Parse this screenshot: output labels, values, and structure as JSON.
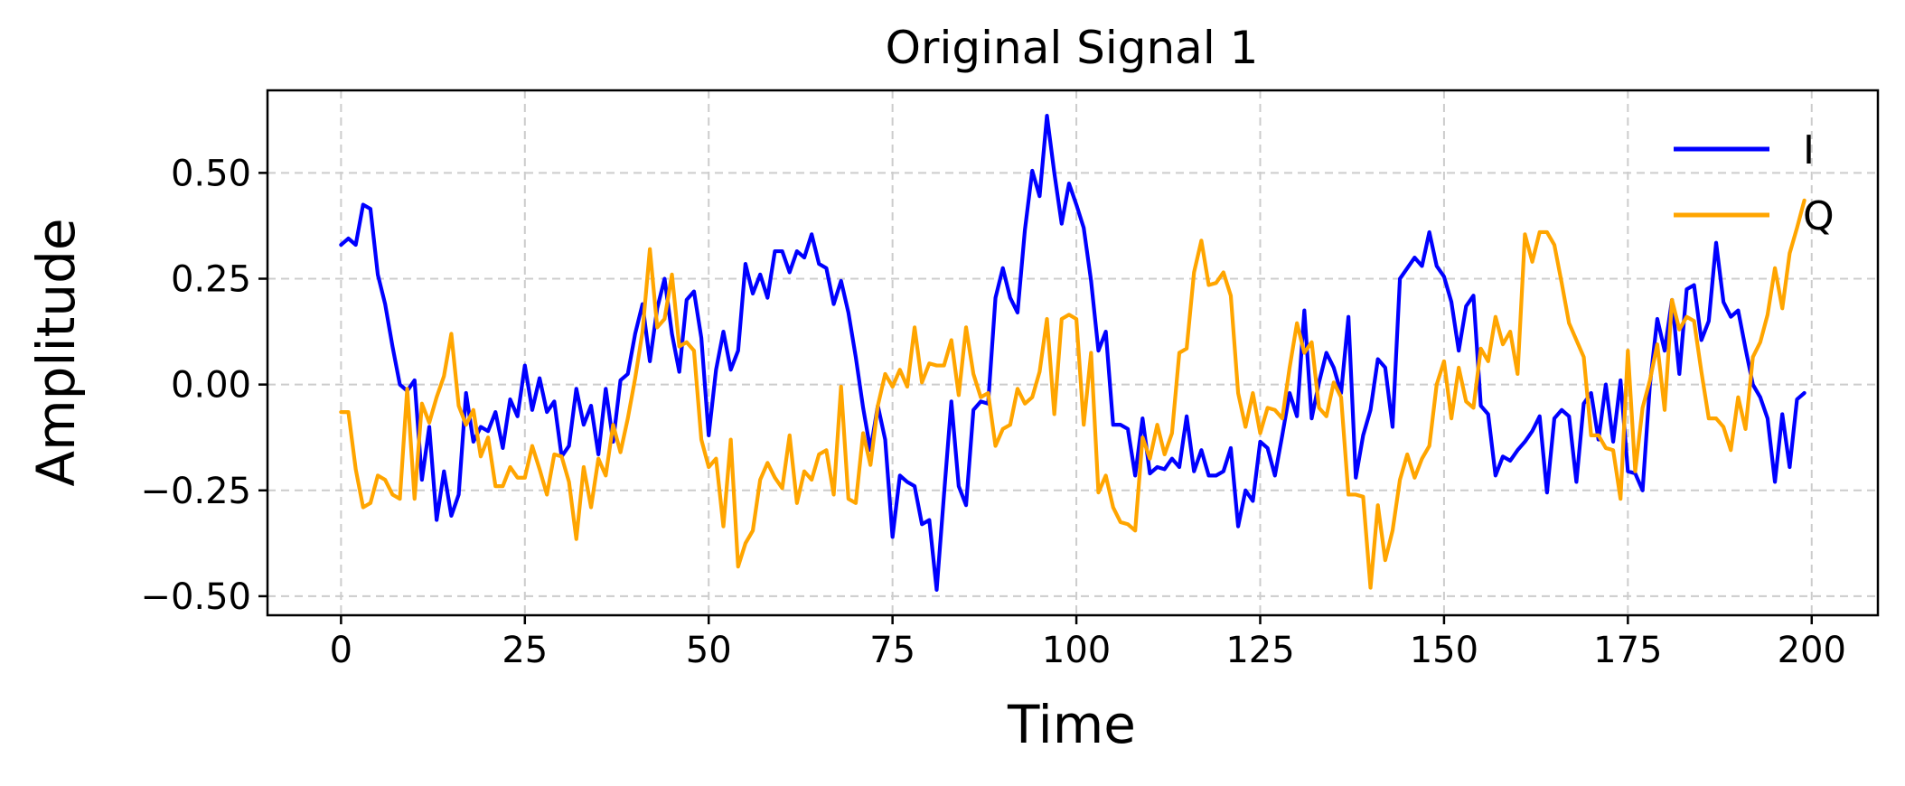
{
  "chart_data": {
    "type": "line",
    "title": "Original Signal 1",
    "xlabel": "Time",
    "ylabel": "Amplitude",
    "xlim": [
      -10,
      209
    ],
    "ylim": [
      -0.545,
      0.695
    ],
    "xticks": [
      0,
      25,
      50,
      75,
      100,
      125,
      150,
      175,
      200
    ],
    "xtick_labels": [
      "0",
      "25",
      "50",
      "75",
      "100",
      "125",
      "150",
      "175",
      "200"
    ],
    "yticks": [
      0.5,
      0.25,
      0.0,
      -0.25,
      -0.5
    ],
    "ytick_labels": [
      "0.50",
      "0.25",
      "0.00",
      "−0.25",
      "−0.50"
    ],
    "grid": true,
    "legend_position": "top-right",
    "series": [
      {
        "name": "I",
        "color": "#0000ff",
        "values": [
          0.33,
          0.345,
          0.33,
          0.425,
          0.415,
          0.26,
          0.19,
          0.09,
          0.0,
          -0.015,
          0.01,
          -0.225,
          -0.1,
          -0.32,
          -0.205,
          -0.31,
          -0.26,
          -0.02,
          -0.135,
          -0.1,
          -0.11,
          -0.065,
          -0.15,
          -0.035,
          -0.075,
          0.045,
          -0.06,
          0.015,
          -0.065,
          -0.04,
          -0.17,
          -0.145,
          -0.01,
          -0.095,
          -0.05,
          -0.165,
          -0.01,
          -0.135,
          0.01,
          0.025,
          0.12,
          0.19,
          0.055,
          0.18,
          0.25,
          0.12,
          0.03,
          0.2,
          0.22,
          0.11,
          -0.12,
          0.035,
          0.125,
          0.035,
          0.08,
          0.285,
          0.215,
          0.26,
          0.205,
          0.315,
          0.315,
          0.265,
          0.315,
          0.3,
          0.355,
          0.285,
          0.275,
          0.19,
          0.245,
          0.17,
          0.065,
          -0.055,
          -0.155,
          -0.05,
          -0.13,
          -0.36,
          -0.215,
          -0.23,
          -0.24,
          -0.33,
          -0.32,
          -0.485,
          -0.26,
          -0.04,
          -0.24,
          -0.285,
          -0.06,
          -0.04,
          -0.045,
          0.205,
          0.275,
          0.205,
          0.17,
          0.365,
          0.505,
          0.445,
          0.635,
          0.5,
          0.38,
          0.475,
          0.425,
          0.37,
          0.245,
          0.08,
          0.125,
          -0.095,
          -0.095,
          -0.105,
          -0.215,
          -0.08,
          -0.21,
          -0.195,
          -0.2,
          -0.175,
          -0.195,
          -0.075,
          -0.205,
          -0.155,
          -0.215,
          -0.215,
          -0.205,
          -0.15,
          -0.335,
          -0.25,
          -0.275,
          -0.135,
          -0.15,
          -0.215,
          -0.12,
          -0.02,
          -0.075,
          0.175,
          -0.08,
          0.005,
          0.075,
          0.04,
          -0.02,
          0.16,
          -0.22,
          -0.12,
          -0.06,
          0.06,
          0.04,
          -0.1,
          0.25,
          0.275,
          0.3,
          0.28,
          0.36,
          0.28,
          0.255,
          0.195,
          0.08,
          0.185,
          0.21,
          -0.05,
          -0.07,
          -0.215,
          -0.17,
          -0.18,
          -0.155,
          -0.135,
          -0.11,
          -0.075,
          -0.255,
          -0.08,
          -0.06,
          -0.075,
          -0.23,
          -0.045,
          -0.02,
          -0.13,
          0.0,
          -0.135,
          0.01,
          -0.205,
          -0.21,
          -0.25,
          0.0,
          0.155,
          0.08,
          0.2,
          0.025,
          0.225,
          0.235,
          0.105,
          0.15,
          0.335,
          0.195,
          0.16,
          0.175,
          0.085,
          0.0,
          -0.03,
          -0.08,
          -0.23,
          -0.07,
          -0.195,
          -0.035,
          -0.02
        ]
      },
      {
        "name": "Q",
        "color": "#ffa500",
        "values": [
          -0.065,
          -0.065,
          -0.2,
          -0.29,
          -0.28,
          -0.215,
          -0.225,
          -0.26,
          -0.27,
          -0.01,
          -0.27,
          -0.045,
          -0.09,
          -0.03,
          0.02,
          0.12,
          -0.05,
          -0.095,
          -0.06,
          -0.17,
          -0.125,
          -0.24,
          -0.24,
          -0.195,
          -0.22,
          -0.22,
          -0.145,
          -0.2,
          -0.26,
          -0.165,
          -0.17,
          -0.23,
          -0.365,
          -0.195,
          -0.29,
          -0.175,
          -0.215,
          -0.095,
          -0.16,
          -0.08,
          0.015,
          0.125,
          0.32,
          0.135,
          0.155,
          0.26,
          0.09,
          0.1,
          0.08,
          -0.13,
          -0.195,
          -0.175,
          -0.335,
          -0.13,
          -0.43,
          -0.375,
          -0.345,
          -0.225,
          -0.185,
          -0.22,
          -0.245,
          -0.12,
          -0.28,
          -0.205,
          -0.225,
          -0.165,
          -0.155,
          -0.26,
          -0.005,
          -0.27,
          -0.28,
          -0.115,
          -0.19,
          -0.05,
          0.025,
          -0.005,
          0.035,
          -0.005,
          0.135,
          0.005,
          0.05,
          0.045,
          0.045,
          0.105,
          -0.025,
          0.135,
          0.025,
          -0.03,
          -0.02,
          -0.145,
          -0.105,
          -0.095,
          -0.01,
          -0.045,
          -0.03,
          0.03,
          0.155,
          -0.07,
          0.155,
          0.165,
          0.155,
          -0.095,
          0.075,
          -0.255,
          -0.215,
          -0.29,
          -0.325,
          -0.33,
          -0.345,
          -0.125,
          -0.175,
          -0.095,
          -0.165,
          -0.115,
          0.075,
          0.085,
          0.265,
          0.34,
          0.235,
          0.24,
          0.265,
          0.21,
          -0.02,
          -0.1,
          -0.02,
          -0.115,
          -0.055,
          -0.06,
          -0.08,
          0.04,
          0.145,
          0.075,
          0.1,
          -0.055,
          -0.075,
          0.005,
          -0.03,
          -0.26,
          -0.26,
          -0.265,
          -0.48,
          -0.285,
          -0.415,
          -0.345,
          -0.225,
          -0.165,
          -0.22,
          -0.175,
          -0.145,
          0.0,
          0.055,
          -0.08,
          0.04,
          -0.04,
          -0.055,
          0.085,
          0.055,
          0.16,
          0.095,
          0.125,
          0.025,
          0.355,
          0.29,
          0.36,
          0.36,
          0.33,
          0.24,
          0.145,
          0.105,
          0.065,
          -0.12,
          -0.12,
          -0.15,
          -0.155,
          -0.27,
          0.08,
          -0.205,
          -0.055,
          0.01,
          0.095,
          -0.06,
          0.2,
          0.13,
          0.16,
          0.15,
          0.03,
          -0.08,
          -0.08,
          -0.1,
          -0.155,
          -0.03,
          -0.105,
          0.065,
          0.1,
          0.165,
          0.275,
          0.18,
          0.31,
          0.37,
          0.435
        ]
      }
    ]
  }
}
